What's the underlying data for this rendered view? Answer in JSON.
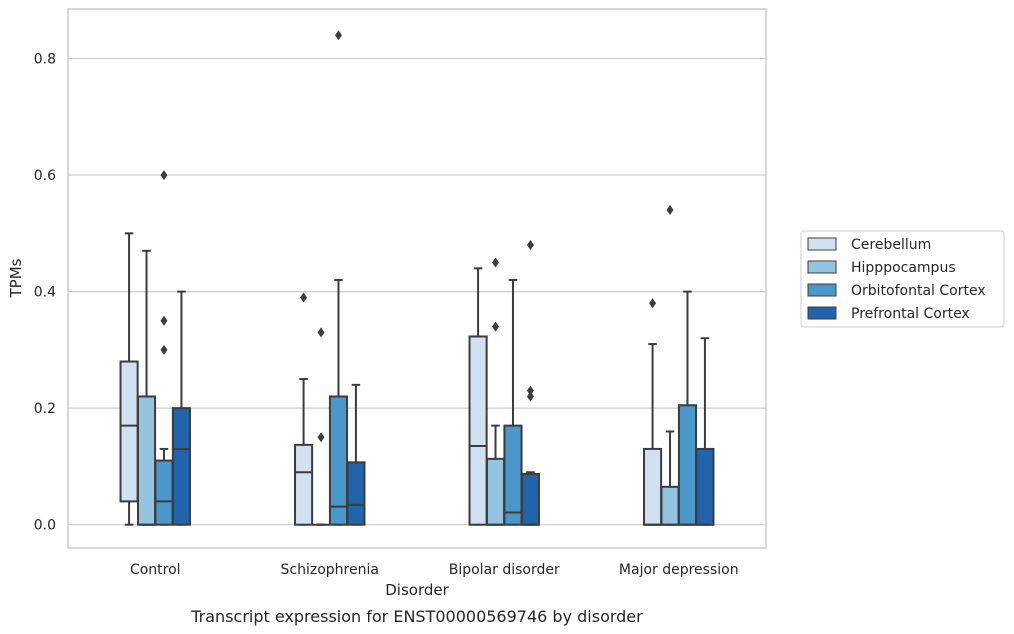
{
  "chart_data": {
    "type": "box",
    "title": "",
    "caption": "Transcript expression for ENST00000569746 by disorder",
    "xlabel": "Disorder",
    "ylabel": "TPMs",
    "ylim": [
      -0.04,
      0.885
    ],
    "yticks": [
      0.0,
      0.2,
      0.4,
      0.6,
      0.8
    ],
    "ytick_labels": [
      "0.0",
      "0.2",
      "0.4",
      "0.6",
      "0.8"
    ],
    "grid": "horizontal",
    "legend_position": "right",
    "categories": [
      "Control",
      "Schizophrenia",
      "Bipolar disorder",
      "Major depression"
    ],
    "series": [
      {
        "name": "Cerebellum",
        "color": "#d0e1f2",
        "boxes": [
          {
            "q1": 0.04,
            "median": 0.17,
            "q3": 0.28,
            "whisker_low": 0.0,
            "whisker_high": 0.5,
            "outliers": []
          },
          {
            "q1": 0.0,
            "median": 0.09,
            "q3": 0.137,
            "whisker_low": 0.0,
            "whisker_high": 0.25,
            "outliers": [
              0.39
            ]
          },
          {
            "q1": 0.0,
            "median": 0.135,
            "q3": 0.323,
            "whisker_low": 0.0,
            "whisker_high": 0.44,
            "outliers": []
          },
          {
            "q1": 0.0,
            "median": 0.0,
            "q3": 0.13,
            "whisker_low": 0.0,
            "whisker_high": 0.31,
            "outliers": [
              0.38
            ]
          }
        ]
      },
      {
        "name": "Hipppocampus",
        "color": "#94c4df",
        "boxes": [
          {
            "q1": 0.0,
            "median": 0.0,
            "q3": 0.22,
            "whisker_low": 0.0,
            "whisker_high": 0.47,
            "outliers": []
          },
          {
            "q1": 0.0,
            "median": 0.0,
            "q3": 0.0,
            "whisker_low": 0.0,
            "whisker_high": 0.0,
            "outliers": [
              0.15,
              0.33
            ]
          },
          {
            "q1": 0.0,
            "median": 0.0,
            "q3": 0.113,
            "whisker_low": 0.0,
            "whisker_high": 0.17,
            "outliers": [
              0.34,
              0.45
            ]
          },
          {
            "q1": 0.0,
            "median": 0.0,
            "q3": 0.065,
            "whisker_low": 0.0,
            "whisker_high": 0.16,
            "outliers": [
              0.54
            ]
          }
        ]
      },
      {
        "name": "Orbitofontal Cortex",
        "color": "#4a98c9",
        "boxes": [
          {
            "q1": 0.0,
            "median": 0.04,
            "q3": 0.11,
            "whisker_low": 0.0,
            "whisker_high": 0.13,
            "outliers": [
              0.3,
              0.35,
              0.6
            ]
          },
          {
            "q1": 0.0,
            "median": 0.031,
            "q3": 0.22,
            "whisker_low": 0.0,
            "whisker_high": 0.42,
            "outliers": [
              0.84
            ]
          },
          {
            "q1": 0.0,
            "median": 0.021,
            "q3": 0.17,
            "whisker_low": 0.0,
            "whisker_high": 0.42,
            "outliers": []
          },
          {
            "q1": 0.0,
            "median": 0.0,
            "q3": 0.205,
            "whisker_low": 0.0,
            "whisker_high": 0.4,
            "outliers": []
          }
        ]
      },
      {
        "name": "Prefrontal Cortex",
        "color": "#2164ab",
        "boxes": [
          {
            "q1": 0.0,
            "median": 0.13,
            "q3": 0.2,
            "whisker_low": 0.0,
            "whisker_high": 0.4,
            "outliers": []
          },
          {
            "q1": 0.0,
            "median": 0.034,
            "q3": 0.107,
            "whisker_low": 0.0,
            "whisker_high": 0.24,
            "outliers": []
          },
          {
            "q1": 0.0,
            "median": 0.0,
            "q3": 0.087,
            "whisker_low": 0.0,
            "whisker_high": 0.09,
            "outliers": [
              0.22,
              0.23,
              0.48
            ]
          },
          {
            "q1": 0.0,
            "median": 0.0,
            "q3": 0.13,
            "whisker_low": 0.0,
            "whisker_high": 0.32,
            "outliers": []
          }
        ]
      }
    ]
  }
}
